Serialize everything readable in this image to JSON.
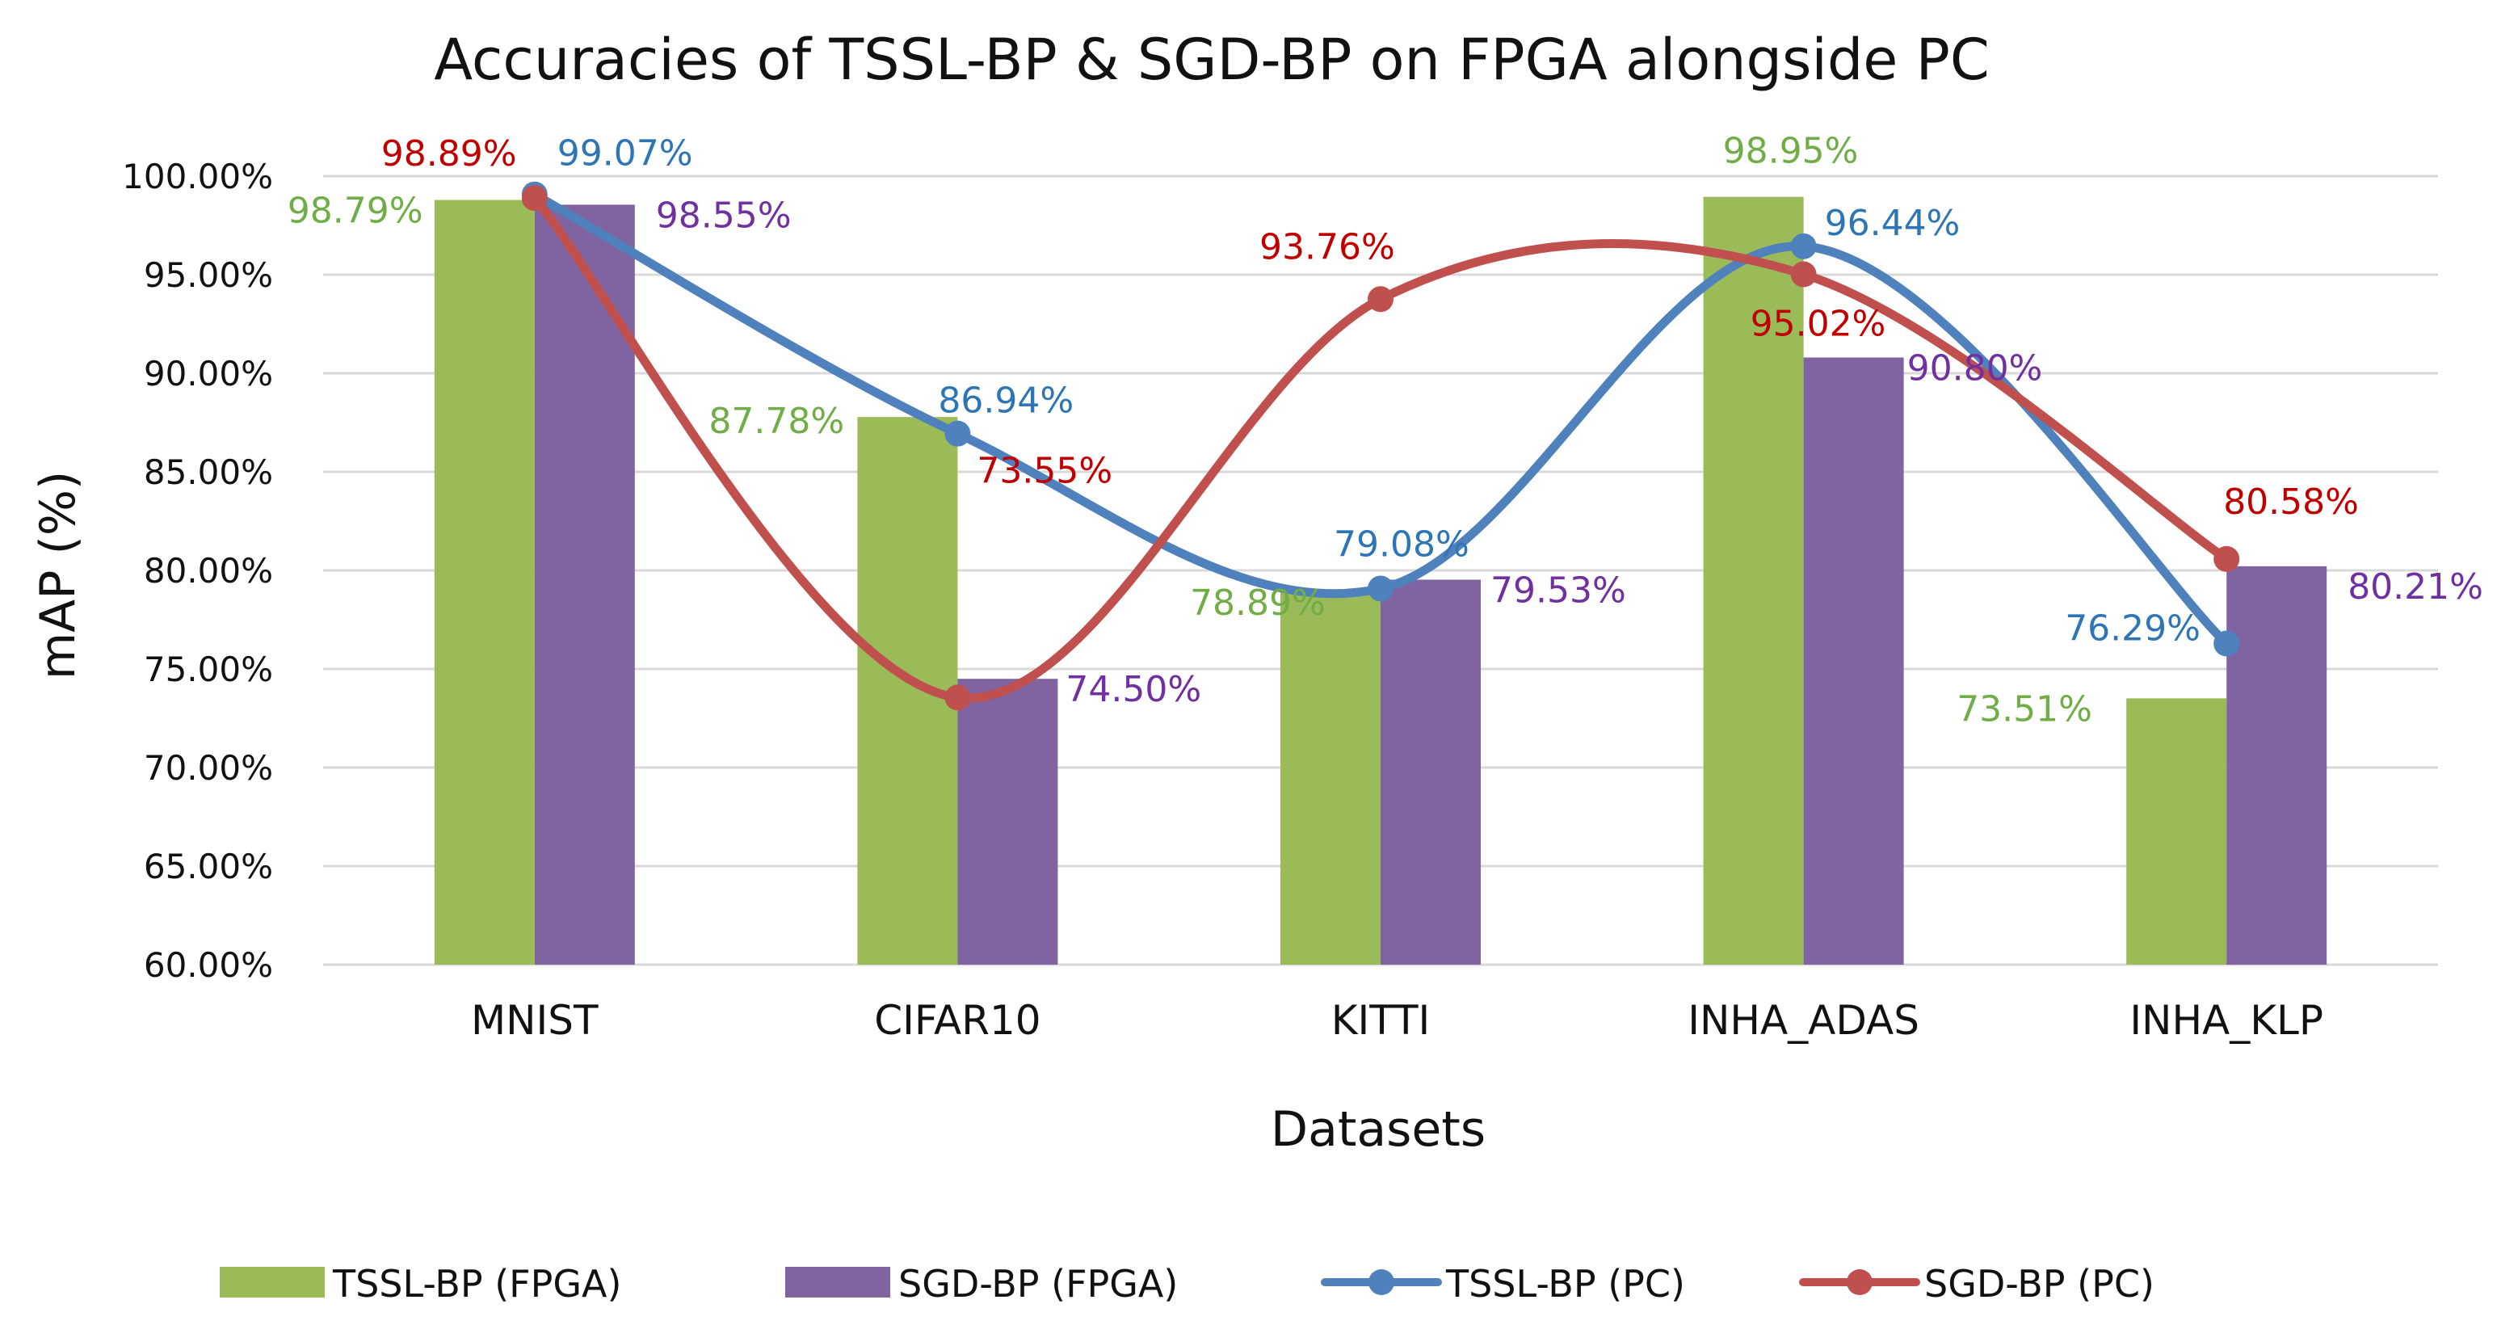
{
  "chart_data": {
    "type": "bar",
    "title": "Accuracies of TSSL-BP & SGD-BP on FPGA alongside PC",
    "xlabel": "Datasets",
    "ylabel": "mAP (%)",
    "ylim": [
      60,
      100
    ],
    "ytick_step": 5,
    "y_tick_labels": [
      "60.00%",
      "65.00%",
      "70.00%",
      "75.00%",
      "80.00%",
      "85.00%",
      "90.00%",
      "95.00%",
      "100.00%"
    ],
    "grid": true,
    "legend_position": "bottom",
    "categories": [
      "MNIST",
      "CIFAR10",
      "KITTI",
      "INHA_ADAS",
      "INHA_KLP"
    ],
    "series": [
      {
        "name": "TSSL-BP (FPGA)",
        "kind": "bar",
        "color": "#9bbb59",
        "values": [
          98.79,
          87.78,
          78.89,
          98.95,
          73.51
        ],
        "labels": [
          "98.79%",
          "87.78%",
          "78.89%",
          "98.95%",
          "73.51%"
        ]
      },
      {
        "name": "SGD-BP (FPGA)",
        "kind": "bar",
        "color": "#8064a2",
        "values": [
          98.55,
          74.5,
          79.53,
          90.8,
          80.21
        ],
        "labels": [
          "98.55%",
          "74.50%",
          "79.53%",
          "90.80%",
          "80.21%"
        ]
      },
      {
        "name": "TSSL-BP (PC)",
        "kind": "line",
        "color": "#4f81bd",
        "label_color": "#2e75b6",
        "values": [
          99.07,
          86.94,
          79.08,
          96.44,
          76.29
        ],
        "labels": [
          "99.07%",
          "86.94%",
          "79.08%",
          "96.44%",
          "76.29%"
        ]
      },
      {
        "name": "SGD-BP (PC)",
        "kind": "line",
        "color": "#c0504d",
        "label_color": "#c00000",
        "values": [
          98.89,
          73.55,
          93.76,
          95.02,
          80.58
        ],
        "labels": [
          "98.89%",
          "73.55%",
          "93.76%",
          "95.02%",
          "80.58%"
        ]
      }
    ]
  }
}
